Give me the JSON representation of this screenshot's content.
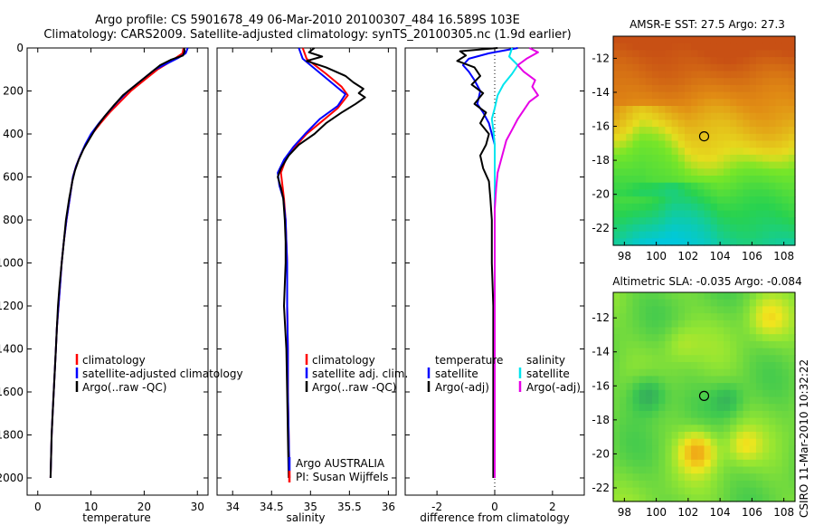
{
  "header": {
    "line1": "Argo profile: CS 5901678_49 06-Mar-2010 20100307_484 16.589S 103E",
    "line2": "Climatology: CARS2009. Satellite-adjusted climatology: synTS_20100305.nc (1.9d earlier)"
  },
  "side_note": "CSIRO 11-Mar-2010 10:32:22",
  "colors": {
    "climatology": "#ff0000",
    "satellite": "#0000ff",
    "argo": "#000000",
    "salinity_satellite": "#00e5ee",
    "salinity_argo": "#e600e6",
    "marker": "#000000"
  },
  "chart_data": [
    {
      "type": "line",
      "panel": "temperature",
      "xlabel": "temperature",
      "ylabel": "",
      "xlim": [
        -2,
        32
      ],
      "ylim": [
        2080,
        0
      ],
      "xticks": [
        0,
        10,
        20,
        30
      ],
      "yticks": [
        0,
        200,
        400,
        600,
        800,
        1000,
        1200,
        1400,
        1600,
        1800,
        2000
      ],
      "legend": [
        "climatology",
        "satellite-adjusted climatology",
        "Argo(..raw -QC)"
      ],
      "series": [
        {
          "name": "climatology",
          "color": "#ff0000",
          "points": [
            [
              27.4,
              0
            ],
            [
              27.2,
              25
            ],
            [
              26,
              45
            ],
            [
              24.5,
              70
            ],
            [
              22.5,
              100
            ],
            [
              20,
              150
            ],
            [
              17.5,
              200
            ],
            [
              15.5,
              250
            ],
            [
              13.5,
              300
            ],
            [
              11.8,
              350
            ],
            [
              10.2,
              400
            ],
            [
              9,
              450
            ],
            [
              8,
              500
            ],
            [
              7.2,
              550
            ],
            [
              6.6,
              600
            ],
            [
              6,
              700
            ],
            [
              5.4,
              800
            ],
            [
              4.9,
              900
            ],
            [
              4.5,
              1000
            ],
            [
              4.2,
              1100
            ],
            [
              3.9,
              1200
            ],
            [
              3.6,
              1300
            ],
            [
              3.4,
              1400
            ],
            [
              3.2,
              1500
            ],
            [
              3,
              1600
            ],
            [
              2.8,
              1700
            ],
            [
              2.6,
              1800
            ],
            [
              2.5,
              1900
            ],
            [
              2.4,
              2000
            ]
          ]
        },
        {
          "name": "satellite-adjusted climatology",
          "color": "#0000ff",
          "points": [
            [
              28.2,
              0
            ],
            [
              27.8,
              25
            ],
            [
              26.5,
              45
            ],
            [
              24.5,
              70
            ],
            [
              22,
              100
            ],
            [
              19.5,
              150
            ],
            [
              17,
              200
            ],
            [
              15,
              250
            ],
            [
              13.2,
              300
            ],
            [
              11.5,
              350
            ],
            [
              10,
              400
            ],
            [
              8.9,
              450
            ],
            [
              8,
              500
            ],
            [
              7.2,
              550
            ],
            [
              6.6,
              600
            ],
            [
              6,
              700
            ],
            [
              5.4,
              800
            ],
            [
              4.9,
              900
            ],
            [
              4.5,
              1000
            ],
            [
              4.2,
              1100
            ],
            [
              3.9,
              1200
            ],
            [
              3.6,
              1300
            ],
            [
              3.4,
              1400
            ],
            [
              3.2,
              1500
            ],
            [
              3,
              1600
            ],
            [
              2.8,
              1700
            ],
            [
              2.6,
              1800
            ],
            [
              2.5,
              1900
            ],
            [
              2.4,
              2000
            ]
          ]
        },
        {
          "name": "Argo(..raw -QC)",
          "color": "#000000",
          "points": [
            [
              27.5,
              0
            ],
            [
              27.6,
              15
            ],
            [
              27.3,
              35
            ],
            [
              25,
              55
            ],
            [
              23,
              80
            ],
            [
              21,
              120
            ],
            [
              18.5,
              170
            ],
            [
              16,
              220
            ],
            [
              14.2,
              270
            ],
            [
              12.5,
              320
            ],
            [
              11,
              370
            ],
            [
              9.8,
              420
            ],
            [
              8.6,
              470
            ],
            [
              7.7,
              520
            ],
            [
              7,
              570
            ],
            [
              6.5,
              620
            ],
            [
              5.9,
              700
            ],
            [
              5.3,
              800
            ],
            [
              4.9,
              900
            ],
            [
              4.5,
              1000
            ],
            [
              4.1,
              1100
            ],
            [
              3.8,
              1200
            ],
            [
              3.6,
              1300
            ],
            [
              3.4,
              1400
            ],
            [
              3.2,
              1500
            ],
            [
              3,
              1600
            ],
            [
              2.8,
              1700
            ],
            [
              2.6,
              1800
            ],
            [
              2.5,
              1900
            ],
            [
              2.4,
              2000
            ]
          ]
        }
      ]
    },
    {
      "type": "line",
      "panel": "salinity",
      "xlabel": "salinity",
      "ylabel": "",
      "xlim": [
        33.8,
        36.1
      ],
      "ylim": [
        2080,
        0
      ],
      "xticks": [
        34,
        34.5,
        35,
        35.5,
        36
      ],
      "legend": [
        "climatology",
        "satellite adj. clim.",
        "Argo(..raw -QC)"
      ],
      "series": [
        {
          "name": "climatology",
          "color": "#ff0000",
          "points": [
            [
              34.9,
              0
            ],
            [
              34.95,
              50
            ],
            [
              35.2,
              120
            ],
            [
              35.4,
              180
            ],
            [
              35.48,
              220
            ],
            [
              35.35,
              280
            ],
            [
              35.15,
              340
            ],
            [
              34.95,
              400
            ],
            [
              34.8,
              460
            ],
            [
              34.68,
              520
            ],
            [
              34.62,
              580
            ],
            [
              34.64,
              640
            ],
            [
              34.66,
              700
            ],
            [
              34.68,
              800
            ],
            [
              34.69,
              900
            ],
            [
              34.7,
              1000
            ],
            [
              34.7,
              1200
            ],
            [
              34.71,
              1400
            ],
            [
              34.71,
              1600
            ],
            [
              34.72,
              1800
            ],
            [
              34.73,
              2000
            ]
          ]
        },
        {
          "name": "satellite adj. clim.",
          "color": "#0000ff",
          "points": [
            [
              34.85,
              0
            ],
            [
              34.9,
              50
            ],
            [
              35.1,
              110
            ],
            [
              35.3,
              170
            ],
            [
              35.45,
              215
            ],
            [
              35.35,
              270
            ],
            [
              35.12,
              330
            ],
            [
              34.93,
              400
            ],
            [
              34.78,
              460
            ],
            [
              34.66,
              520
            ],
            [
              34.58,
              580
            ],
            [
              34.6,
              640
            ],
            [
              34.65,
              700
            ],
            [
              34.68,
              800
            ],
            [
              34.69,
              900
            ],
            [
              34.7,
              1000
            ],
            [
              34.7,
              1200
            ],
            [
              34.71,
              1400
            ],
            [
              34.71,
              1600
            ],
            [
              34.72,
              1800
            ],
            [
              34.73,
              2000
            ]
          ]
        },
        {
          "name": "Argo(..raw -QC)",
          "color": "#000000",
          "points": [
            [
              35.05,
              0
            ],
            [
              34.98,
              20
            ],
            [
              35.15,
              40
            ],
            [
              34.95,
              60
            ],
            [
              35.2,
              90
            ],
            [
              35.45,
              130
            ],
            [
              35.55,
              160
            ],
            [
              35.68,
              190
            ],
            [
              35.62,
              210
            ],
            [
              35.7,
              230
            ],
            [
              35.58,
              260
            ],
            [
              35.4,
              300
            ],
            [
              35.2,
              350
            ],
            [
              35.05,
              400
            ],
            [
              34.85,
              450
            ],
            [
              34.72,
              500
            ],
            [
              34.62,
              560
            ],
            [
              34.58,
              600
            ],
            [
              34.62,
              650
            ],
            [
              34.65,
              700
            ],
            [
              34.67,
              800
            ],
            [
              34.68,
              900
            ],
            [
              34.68,
              1000
            ],
            [
              34.66,
              1200
            ],
            [
              34.69,
              1400
            ],
            [
              34.7,
              1600
            ],
            [
              34.71,
              1800
            ],
            [
              34.72,
              2000
            ]
          ]
        }
      ],
      "annotations": [
        "Argo AUSTRALIA",
        "PI: Susan Wijffels"
      ]
    },
    {
      "type": "line",
      "panel": "difference",
      "xlabel": "difference from climatology",
      "ylabel": "",
      "xlim": [
        -3.1,
        3.1
      ],
      "ylim": [
        2080,
        0
      ],
      "xticks": [
        -2,
        0,
        2
      ],
      "legend_temperature": [
        "temperature",
        "satellite",
        "Argo(-adj)"
      ],
      "legend_salinity": [
        "salinity",
        "satellite",
        "Argo(-adj)"
      ],
      "series": [
        {
          "name": "temperature satellite",
          "color": "#0000ff",
          "points": [
            [
              0.8,
              0
            ],
            [
              -0.2,
              25
            ],
            [
              -0.9,
              50
            ],
            [
              -1.1,
              80
            ],
            [
              -0.9,
              110
            ],
            [
              -0.7,
              150
            ],
            [
              -0.5,
              200
            ],
            [
              -0.6,
              260
            ],
            [
              -0.4,
              300
            ],
            [
              -0.2,
              350
            ],
            [
              -0.1,
              400
            ],
            [
              0,
              450
            ],
            [
              0,
              600
            ],
            [
              0,
              2000
            ]
          ]
        },
        {
          "name": "temperature Argo(-adj)",
          "color": "#000000",
          "points": [
            [
              0.1,
              0
            ],
            [
              -1.2,
              15
            ],
            [
              -1.0,
              35
            ],
            [
              -1.3,
              60
            ],
            [
              -0.7,
              90
            ],
            [
              -0.5,
              130
            ],
            [
              -0.8,
              170
            ],
            [
              -0.4,
              210
            ],
            [
              -0.7,
              260
            ],
            [
              -0.3,
              300
            ],
            [
              -0.5,
              350
            ],
            [
              -0.2,
              400
            ],
            [
              -0.3,
              450
            ],
            [
              -0.5,
              500
            ],
            [
              -0.4,
              560
            ],
            [
              -0.2,
              620
            ],
            [
              -0.15,
              700
            ],
            [
              -0.1,
              800
            ],
            [
              -0.1,
              1000
            ],
            [
              -0.05,
              1200
            ],
            [
              -0.05,
              1400
            ],
            [
              -0.05,
              1600
            ],
            [
              -0.05,
              1800
            ],
            [
              -0.05,
              2000
            ]
          ]
        },
        {
          "name": "salinity satellite",
          "color": "#00e5ee",
          "points": [
            [
              0.6,
              0
            ],
            [
              0.5,
              40
            ],
            [
              0.8,
              80
            ],
            [
              0.6,
              120
            ],
            [
              0.3,
              170
            ],
            [
              0.1,
              220
            ],
            [
              0,
              280
            ],
            [
              -0.1,
              330
            ],
            [
              -0.05,
              380
            ],
            [
              0,
              450
            ],
            [
              0,
              2000
            ]
          ]
        },
        {
          "name": "salinity Argo(-adj)",
          "color": "#e600e6",
          "points": [
            [
              1.2,
              0
            ],
            [
              1.5,
              20
            ],
            [
              1.1,
              50
            ],
            [
              0.8,
              80
            ],
            [
              1.0,
              110
            ],
            [
              1.4,
              150
            ],
            [
              1.3,
              180
            ],
            [
              1.5,
              220
            ],
            [
              1.2,
              250
            ],
            [
              1.0,
              290
            ],
            [
              0.8,
              330
            ],
            [
              0.6,
              380
            ],
            [
              0.4,
              430
            ],
            [
              0.3,
              480
            ],
            [
              0.2,
              530
            ],
            [
              0.1,
              580
            ],
            [
              0.05,
              650
            ],
            [
              0,
              750
            ],
            [
              0,
              2000
            ]
          ]
        }
      ]
    },
    {
      "type": "heatmap",
      "panel": "sst",
      "title": "AMSR-E SST: 27.5 Argo: 27.3",
      "xticks": [
        98,
        100,
        102,
        104,
        106,
        108
      ],
      "yticks": [
        -12,
        -14,
        -16,
        -18,
        -20,
        -22
      ],
      "xlim": [
        97.3,
        108.7
      ],
      "ylim": [
        -23,
        -10.7
      ],
      "marker": {
        "lon": 103,
        "lat": -16.589
      }
    },
    {
      "type": "heatmap",
      "panel": "sla",
      "title": "Altimetric SLA: -0.035 Argo: -0.084",
      "xticks": [
        98,
        100,
        102,
        104,
        106,
        108
      ],
      "yticks": [
        -12,
        -14,
        -16,
        -18,
        -20,
        -22
      ],
      "xlim": [
        97.3,
        108.7
      ],
      "ylim": [
        -22.8,
        -10.5
      ],
      "marker": {
        "lon": 103,
        "lat": -16.589
      }
    }
  ]
}
